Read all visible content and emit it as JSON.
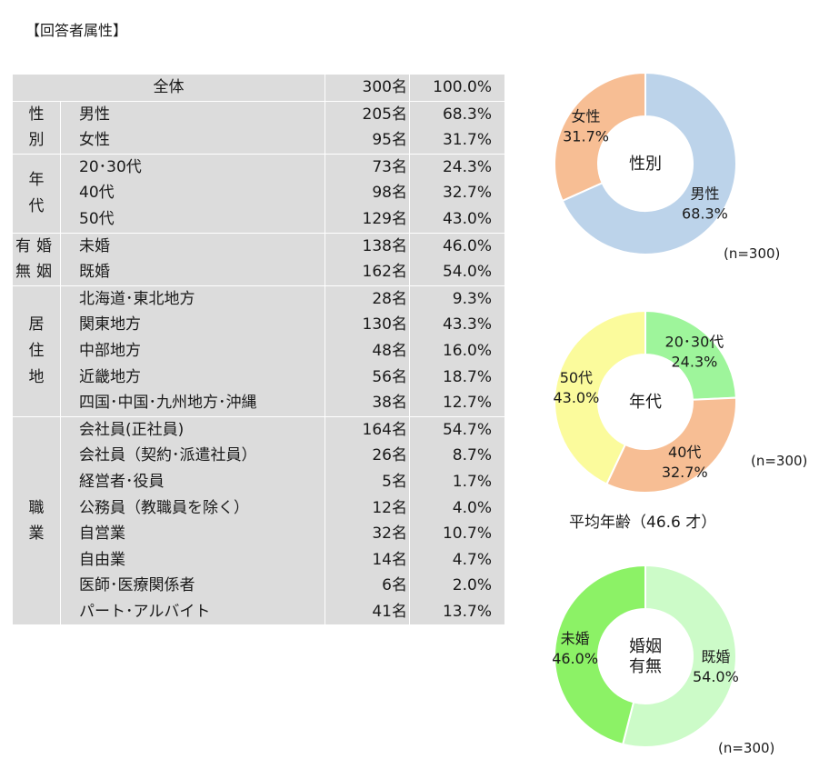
{
  "title": "【回答者属性】",
  "table": {
    "total": {
      "label": "全体",
      "count": "300名",
      "pct": "100.0%"
    },
    "groups": [
      {
        "category": "性別",
        "rows": [
          {
            "label": "男性",
            "count": "205名",
            "pct": "68.3%"
          },
          {
            "label": "女性",
            "count": "95名",
            "pct": "31.7%"
          }
        ]
      },
      {
        "category": "年代",
        "rows": [
          {
            "label": "20･30代",
            "count": "73名",
            "pct": "24.3%"
          },
          {
            "label": "40代",
            "count": "98名",
            "pct": "32.7%"
          },
          {
            "label": "50代",
            "count": "129名",
            "pct": "43.0%"
          }
        ]
      },
      {
        "category": "有婚無姻",
        "rows": [
          {
            "label": "未婚",
            "count": "138名",
            "pct": "46.0%"
          },
          {
            "label": "既婚",
            "count": "162名",
            "pct": "54.0%"
          }
        ]
      },
      {
        "category": "居住地",
        "rows": [
          {
            "label": "北海道･東北地方",
            "count": "28名",
            "pct": "9.3%"
          },
          {
            "label": "関東地方",
            "count": "130名",
            "pct": "43.3%"
          },
          {
            "label": "中部地方",
            "count": "48名",
            "pct": "16.0%"
          },
          {
            "label": "近畿地方",
            "count": "56名",
            "pct": "18.7%"
          },
          {
            "label": "四国･中国･九州地方･沖縄",
            "count": "38名",
            "pct": "12.7%"
          }
        ]
      },
      {
        "category": "職業",
        "rows": [
          {
            "label": "会社員(正社員)",
            "count": "164名",
            "pct": "54.7%"
          },
          {
            "label": "会社員（契約･派遣社員）",
            "count": "26名",
            "pct": "8.7%"
          },
          {
            "label": "経営者･役員",
            "count": "5名",
            "pct": "1.7%"
          },
          {
            "label": "公務員（教職員を除く）",
            "count": "12名",
            "pct": "4.0%"
          },
          {
            "label": "自営業",
            "count": "32名",
            "pct": "10.7%"
          },
          {
            "label": "自由業",
            "count": "14名",
            "pct": "4.7%"
          },
          {
            "label": "医師･医療関係者",
            "count": "6名",
            "pct": "2.0%"
          },
          {
            "label": "パート･アルバイト",
            "count": "41名",
            "pct": "13.7%"
          }
        ]
      }
    ]
  },
  "average_age_text": "平均年齢（46.6 才）",
  "chart_data": [
    {
      "type": "pie",
      "title": "性別",
      "n_label": "(n=300)",
      "series": [
        {
          "name": "男性",
          "value": 68.3,
          "value_label": "68.3%",
          "color": "#bcd3ea"
        },
        {
          "name": "女性",
          "value": 31.7,
          "value_label": "31.7%",
          "color": "#f7be94"
        }
      ]
    },
    {
      "type": "pie",
      "title": "年代",
      "n_label": "(n=300)",
      "series": [
        {
          "name": "20･30代",
          "value": 24.3,
          "value_label": "24.3%",
          "color": "#9ef59b"
        },
        {
          "name": "40代",
          "value": 32.7,
          "value_label": "32.7%",
          "color": "#f7be94"
        },
        {
          "name": "50代",
          "value": 43.0,
          "value_label": "43.0%",
          "color": "#fbfb9c"
        }
      ]
    },
    {
      "type": "pie",
      "title": "婚姻\n有無",
      "n_label": "(n=300)",
      "series": [
        {
          "name": "既婚",
          "value": 54.0,
          "value_label": "54.0%",
          "color": "#ccfbc8"
        },
        {
          "name": "未婚",
          "value": 46.0,
          "value_label": "46.0%",
          "color": "#8cf266"
        }
      ]
    }
  ]
}
